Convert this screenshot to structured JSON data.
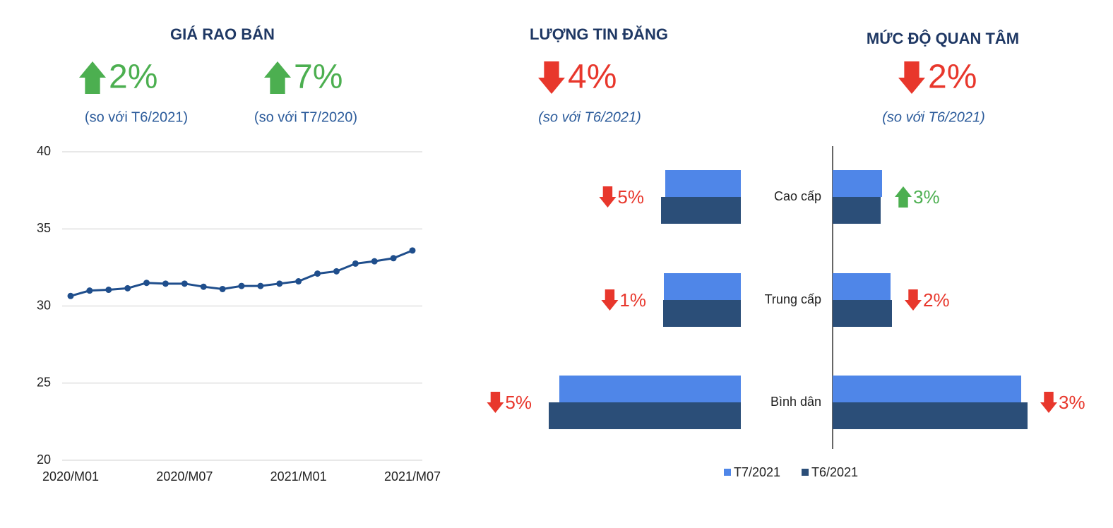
{
  "chart_data": [
    {
      "type": "line",
      "title": "GIÁ RAO BÁN",
      "kpis": [
        {
          "value": 2,
          "label": "2%",
          "trend": "up",
          "caption": "(so với T6/2021)"
        },
        {
          "value": 7,
          "label": "7%",
          "trend": "up",
          "caption": "(so với T7/2020)"
        }
      ],
      "categories": [
        "2020/M01",
        null,
        null,
        null,
        null,
        null,
        "2020/M07",
        null,
        null,
        null,
        null,
        null,
        "2021/M01",
        null,
        null,
        null,
        null,
        null,
        "2021/M07"
      ],
      "values": [
        30.65,
        31.0,
        31.05,
        31.15,
        31.5,
        31.45,
        31.45,
        31.25,
        31.1,
        31.3,
        31.3,
        31.45,
        31.6,
        32.1,
        32.25,
        32.75,
        32.9,
        33.1,
        33.6
      ],
      "color": "#1f4e8c",
      "ylim": [
        20,
        40
      ],
      "yticks": [
        20,
        25,
        30,
        35,
        40
      ],
      "grid": true
    },
    {
      "type": "hbar",
      "title": "LƯỢNG TIN ĐĂNG",
      "reversed": true,
      "kpis": [
        {
          "value": 4,
          "label": "4%",
          "trend": "down",
          "caption": "(so với T6/2021)"
        }
      ],
      "series": [
        {
          "color": "#4f86e8",
          "values": [
            107,
            109,
            257
          ]
        },
        {
          "color": "#2b4e78",
          "values": [
            113,
            110,
            272
          ]
        }
      ],
      "annotations": [
        {
          "value": 5,
          "label": "5%",
          "trend": "down"
        },
        {
          "value": 1,
          "label": "1%",
          "trend": "down"
        },
        {
          "value": 5,
          "label": "5%",
          "trend": "down"
        }
      ],
      "xlim": [
        0,
        300
      ]
    },
    {
      "type": "hbar",
      "title": "MỨC ĐỘ QUAN TÂM",
      "reversed": false,
      "kpis": [
        {
          "value": 2,
          "label": "2%",
          "trend": "down",
          "caption": "(so với T6/2021)"
        }
      ],
      "categories": [
        "Cao cấp",
        "Trung cấp",
        "Bình dân"
      ],
      "series": [
        {
          "name": "T7/2021",
          "color": "#4f86e8",
          "values": [
            70,
            82,
            267
          ]
        },
        {
          "name": "T6/2021",
          "color": "#2b4e78",
          "values": [
            68,
            84,
            276
          ]
        }
      ],
      "annotations": [
        {
          "value": 3,
          "label": "3%",
          "trend": "up"
        },
        {
          "value": 2,
          "label": "2%",
          "trend": "down"
        },
        {
          "value": 3,
          "label": "3%",
          "trend": "down"
        }
      ],
      "xlim": [
        0,
        300
      ]
    }
  ]
}
